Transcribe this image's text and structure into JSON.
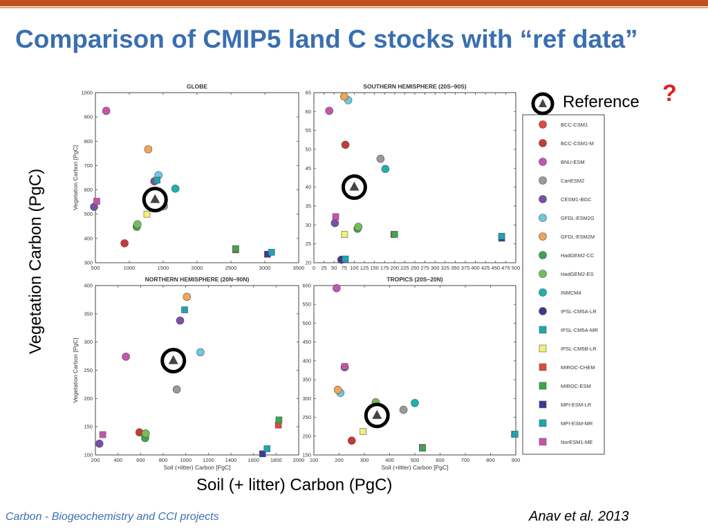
{
  "title": "Comparison of CMIP5 land C stocks with “ref data”",
  "big_ylabel": "Vegetation Carbon (PgC)",
  "big_xlabel": "Soil (+ litter) Carbon (PgC)",
  "footer_left": "Carbon - Biogeochemistry and CCI projects",
  "footer_right": "Anav et al. 2013",
  "reference_label": "Reference",
  "question_mark": "?",
  "legend": [
    {
      "name": "BCC-CSM1",
      "marker": "circle",
      "color": "#e04a3a"
    },
    {
      "name": "BCC-CSM1-M",
      "marker": "circle",
      "color": "#c83a34"
    },
    {
      "name": "BNU-ESM",
      "marker": "circle",
      "color": "#c553b0"
    },
    {
      "name": "CanESM2",
      "marker": "circle",
      "color": "#9a9a9a"
    },
    {
      "name": "CESM1-BGC",
      "marker": "circle",
      "color": "#7a4fa8"
    },
    {
      "name": "GFDL-ESM2G",
      "marker": "circle",
      "color": "#70c6e6"
    },
    {
      "name": "GFDL-ESM2M",
      "marker": "circle",
      "color": "#f2a654"
    },
    {
      "name": "HadGEM2-CC",
      "marker": "circle",
      "color": "#3aa64e"
    },
    {
      "name": "HadGEM2-ES",
      "marker": "circle",
      "color": "#72bf58"
    },
    {
      "name": "INMCM4",
      "marker": "circle",
      "color": "#1ab3ae"
    },
    {
      "name": "IPSL-CM5A-LR",
      "marker": "circle",
      "color": "#3a3a8c"
    },
    {
      "name": "IPSL-CM5A-MR",
      "marker": "square",
      "color": "#1aa6b3"
    },
    {
      "name": "IPSL-CM5B-LR",
      "marker": "square",
      "color": "#f2ef78"
    },
    {
      "name": "MIROC-CHEM",
      "marker": "square",
      "color": "#e04a3a"
    },
    {
      "name": "MIROC-ESM",
      "marker": "square",
      "color": "#3aa64e"
    },
    {
      "name": "MPI-ESM-LR",
      "marker": "square",
      "color": "#3a3a9c"
    },
    {
      "name": "MPI-ESM-MR",
      "marker": "square",
      "color": "#1aa6b3"
    },
    {
      "name": "NorESM1-ME",
      "marker": "square",
      "color": "#c553b0"
    }
  ],
  "chart_data": [
    {
      "type": "scatter",
      "title": "GLOBE",
      "xlabel": "",
      "ylabel": "Vegetation Carbon [PgC]",
      "xlim": [
        500,
        3500
      ],
      "ylim": [
        300,
        1000
      ],
      "xticks": [
        500,
        1000,
        1500,
        2000,
        2500,
        3000,
        3500
      ],
      "yticks": [
        300,
        400,
        500,
        600,
        700,
        800,
        900,
        1000
      ],
      "reference": {
        "x": 1380,
        "y": 560
      },
      "points": [
        {
          "model": "BCC-CSM1-M",
          "x": 930,
          "y": 380
        },
        {
          "model": "BNU-ESM",
          "x": 660,
          "y": 925
        },
        {
          "model": "CanESM2",
          "x": 1510,
          "y": 533
        },
        {
          "model": "CESM1-BGC",
          "x": 480,
          "y": 530
        },
        {
          "model": "CESM1-BGC",
          "x": 1370,
          "y": 635
        },
        {
          "model": "GFDL-ESM2G",
          "x": 1430,
          "y": 660
        },
        {
          "model": "GFDL-ESM2M",
          "x": 1280,
          "y": 767
        },
        {
          "model": "HadGEM2-CC",
          "x": 1110,
          "y": 448
        },
        {
          "model": "HadGEM2-ES",
          "x": 1120,
          "y": 458
        },
        {
          "model": "INMCM4",
          "x": 1680,
          "y": 605
        },
        {
          "model": "IPSL-CM5A-MR",
          "x": 1410,
          "y": 640
        },
        {
          "model": "IPSL-CM5B-LR",
          "x": 1260,
          "y": 500
        },
        {
          "model": "MIROC-CHEM",
          "x": 2570,
          "y": 353
        },
        {
          "model": "MIROC-ESM",
          "x": 2570,
          "y": 358
        },
        {
          "model": "MPI-ESM-LR",
          "x": 3040,
          "y": 335
        },
        {
          "model": "MPI-ESM-MR",
          "x": 3100,
          "y": 343
        },
        {
          "model": "NorESM1-ME",
          "x": 520,
          "y": 553
        }
      ]
    },
    {
      "type": "scatter",
      "title": "SOUTHERN HEMISPHERE (20S–90S)",
      "xlabel": "",
      "ylabel": "",
      "xlim": [
        0,
        500
      ],
      "ylim": [
        20,
        65
      ],
      "xticks": [
        0,
        25,
        50,
        75,
        100,
        125,
        150,
        175,
        200,
        225,
        250,
        275,
        300,
        325,
        350,
        375,
        400,
        425,
        450,
        475,
        500
      ],
      "yticks": [
        20,
        25,
        30,
        35,
        40,
        45,
        50,
        55,
        60,
        65
      ],
      "reference": {
        "x": 100,
        "y": 40
      },
      "points": [
        {
          "model": "BCC-CSM1-M",
          "x": 78,
          "y": 51.2
        },
        {
          "model": "BNU-ESM",
          "x": 38,
          "y": 60.2
        },
        {
          "model": "CanESM2",
          "x": 165,
          "y": 47.5
        },
        {
          "model": "CESM1-BGC",
          "x": 52,
          "y": 30.5
        },
        {
          "model": "GFDL-ESM2G",
          "x": 85,
          "y": 63
        },
        {
          "model": "GFDL-ESM2M",
          "x": 75,
          "y": 64
        },
        {
          "model": "HadGEM2-CC",
          "x": 108,
          "y": 29
        },
        {
          "model": "HadGEM2-ES",
          "x": 110,
          "y": 29.5
        },
        {
          "model": "INMCM4",
          "x": 177,
          "y": 44.8
        },
        {
          "model": "IPSL-CM5A-LR",
          "x": 68,
          "y": 20.8
        },
        {
          "model": "IPSL-CM5A-MR",
          "x": 78,
          "y": 21
        },
        {
          "model": "IPSL-CM5B-LR",
          "x": 76,
          "y": 27.5
        },
        {
          "model": "MIROC-CHEM",
          "x": 198,
          "y": 27.5
        },
        {
          "model": "MIROC-ESM",
          "x": 200,
          "y": 27.5
        },
        {
          "model": "MPI-ESM-LR",
          "x": 465,
          "y": 26.5
        },
        {
          "model": "MPI-ESM-MR",
          "x": 465,
          "y": 27
        },
        {
          "model": "NorESM1-ME",
          "x": 54,
          "y": 32.2
        }
      ]
    },
    {
      "type": "scatter",
      "title": "NORTHERN HEMISPHERE (20N–90N)",
      "xlabel": "Soil (+litter) Carbon [PgC]",
      "ylabel": "Vegetation Carbon [PgC]",
      "xlim": [
        200,
        2000
      ],
      "ylim": [
        100,
        400
      ],
      "xticks": [
        200,
        400,
        600,
        800,
        1000,
        1200,
        1400,
        1600,
        1800,
        2000
      ],
      "yticks": [
        100,
        150,
        200,
        250,
        300,
        350,
        400
      ],
      "reference": {
        "x": 890,
        "y": 267
      },
      "points": [
        {
          "model": "BCC-CSM1-M",
          "x": 590,
          "y": 140
        },
        {
          "model": "BNU-ESM",
          "x": 470,
          "y": 274
        },
        {
          "model": "CanESM2",
          "x": 920,
          "y": 216
        },
        {
          "model": "CESM1-BGC",
          "x": 235,
          "y": 120
        },
        {
          "model": "CESM1-BGC",
          "x": 950,
          "y": 338
        },
        {
          "model": "GFDL-ESM2G",
          "x": 1130,
          "y": 282
        },
        {
          "model": "GFDL-ESM2M",
          "x": 1010,
          "y": 380
        },
        {
          "model": "HadGEM2-CC",
          "x": 640,
          "y": 130
        },
        {
          "model": "HadGEM2-ES",
          "x": 645,
          "y": 138
        },
        {
          "model": "IPSL-CM5A-MR",
          "x": 990,
          "y": 357
        },
        {
          "model": "IPSL-CM5B-LR",
          "x": 895,
          "y": 262
        },
        {
          "model": "MIROC-CHEM",
          "x": 1820,
          "y": 153
        },
        {
          "model": "MIROC-ESM",
          "x": 1825,
          "y": 162
        },
        {
          "model": "MPI-ESM-LR",
          "x": 1680,
          "y": 102
        },
        {
          "model": "MPI-ESM-MR",
          "x": 1720,
          "y": 111
        },
        {
          "model": "NorESM1-ME",
          "x": 265,
          "y": 136
        }
      ]
    },
    {
      "type": "scatter",
      "title": "TROPICS (20S–20N)",
      "xlabel": "Soil (+litter) Carbon [PgC]",
      "ylabel": "",
      "xlim": [
        100,
        900
      ],
      "ylim": [
        150,
        600
      ],
      "xticks": [
        100,
        200,
        300,
        400,
        500,
        600,
        700,
        800,
        900
      ],
      "yticks": [
        150,
        200,
        250,
        300,
        350,
        400,
        450,
        500,
        550,
        600
      ],
      "reference": {
        "x": 350,
        "y": 255
      },
      "points": [
        {
          "model": "BCC-CSM1-M",
          "x": 250,
          "y": 188
        },
        {
          "model": "BNU-ESM",
          "x": 190,
          "y": 593
        },
        {
          "model": "CanESM2",
          "x": 455,
          "y": 270
        },
        {
          "model": "CESM1-BGC",
          "x": 222,
          "y": 383
        },
        {
          "model": "GFDL-ESM2G",
          "x": 205,
          "y": 315
        },
        {
          "model": "GFDL-ESM2M",
          "x": 195,
          "y": 323
        },
        {
          "model": "HadGEM2-CC",
          "x": 345,
          "y": 278
        },
        {
          "model": "HadGEM2-ES",
          "x": 345,
          "y": 290
        },
        {
          "model": "INMCM4",
          "x": 500,
          "y": 288
        },
        {
          "model": "IPSL-CM5A-MR",
          "x": 330,
          "y": 260
        },
        {
          "model": "IPSL-CM5B-LR",
          "x": 295,
          "y": 212
        },
        {
          "model": "MIROC-CHEM",
          "x": 530,
          "y": 170
        },
        {
          "model": "MIROC-ESM",
          "x": 530,
          "y": 168
        },
        {
          "model": "MPI-ESM-LR",
          "x": 895,
          "y": 205
        },
        {
          "model": "MPI-ESM-MR",
          "x": 897,
          "y": 205
        },
        {
          "model": "NorESM1-ME",
          "x": 222,
          "y": 385
        }
      ]
    }
  ]
}
